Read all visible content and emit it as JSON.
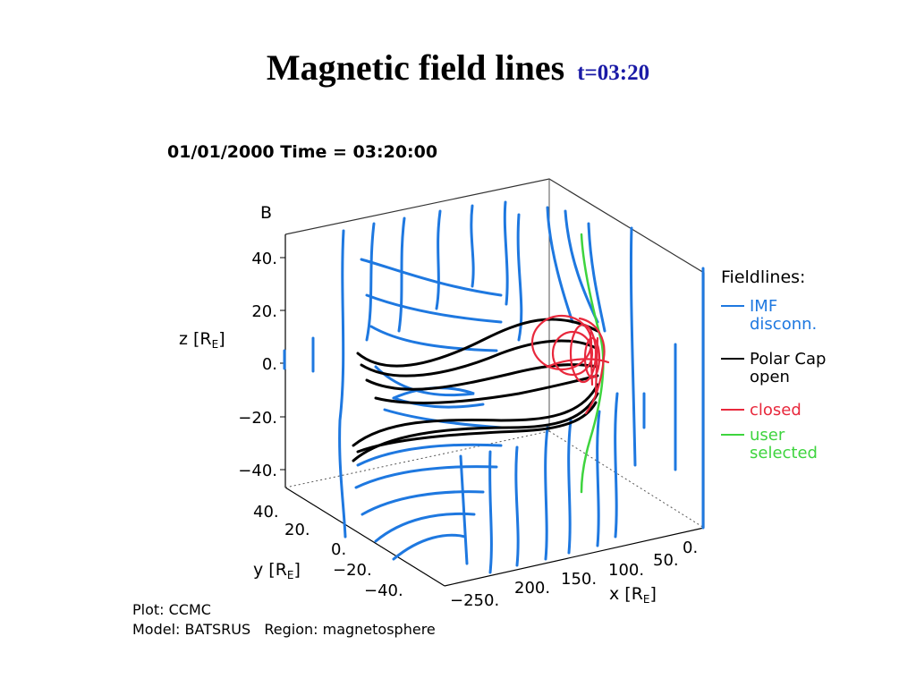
{
  "slide": {
    "title": "Magnetic field lines",
    "subtitle": "t=03:20"
  },
  "plot": {
    "header": "01/01/2000 Time = 03:20:00",
    "variable": "B",
    "z_label": "z [R",
    "y_label": "y [R",
    "x_label": "x [R",
    "axis_subscript": "E",
    "axis_close": "]",
    "z_ticks": [
      "40.",
      "20.",
      "0.",
      "−20.",
      "−40."
    ],
    "y_ticks": [
      "40.",
      "20.",
      "0.",
      "−20.",
      "−40."
    ],
    "x_ticks": [
      "−250.",
      "200.",
      "150.",
      "100.",
      "50.",
      "0."
    ]
  },
  "legend": {
    "title": "Fieldlines:",
    "entries": [
      {
        "lines": [
          "IMF",
          "disconn."
        ],
        "color": "#1e78e0"
      },
      {
        "lines": [
          "Polar Cap",
          "open"
        ],
        "color": "#000000"
      },
      {
        "lines": [
          "closed"
        ],
        "color": "#e8283c"
      },
      {
        "lines": [
          "user",
          "selected"
        ],
        "color": "#3ed43e"
      }
    ]
  },
  "footer": {
    "line1": "Plot: CCMC",
    "line2": "Model: BATSRUS   Region: magnetosphere"
  },
  "colors": {
    "imf": "#1e78e0",
    "open": "#000000",
    "closed": "#e8283c",
    "user": "#3ed43e",
    "subtitle": "#1a1aa6"
  }
}
